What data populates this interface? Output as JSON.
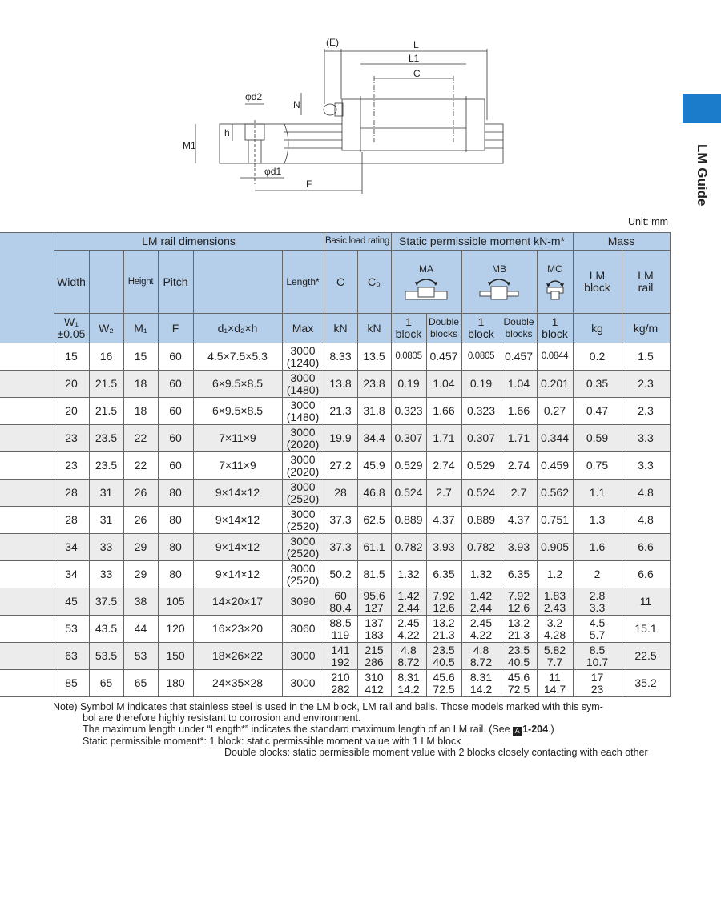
{
  "diagram": {
    "labels": {
      "E": "(E)",
      "L": "L",
      "L1": "L1",
      "C": "C",
      "d2": "φd2",
      "N": "N",
      "M1": "M1",
      "h": "h",
      "d1": "φd1",
      "F": "F"
    }
  },
  "side_tab": {
    "label": "LM Guide",
    "color": "#1b7ccb"
  },
  "unit": "Unit: mm",
  "table": {
    "header": {
      "lm_rail_dimensions": "LM rail dimensions",
      "basic_load_rating": "Basic load rating",
      "static_moment": "Static permissible moment kN-m*",
      "mass": "Mass",
      "width": "Width",
      "height": "Height",
      "pitch": "Pitch",
      "length": "Length*",
      "c": "C",
      "c0": "C₀",
      "ma": "MA",
      "mb": "MB",
      "mc": "MC",
      "lm_block": "LM\nblock",
      "lm_rail": "LM\nrail",
      "w1": "W₁\n±0.05",
      "w2": "W₂",
      "m1": "M₁",
      "f": "F",
      "d": "d₁×d₂×h",
      "max": "Max",
      "kn1": "kN",
      "kn2": "kN",
      "one_block_a": "1\nblock",
      "double_a": "Double\nblocks",
      "one_block_b": "1\nblock",
      "double_b": "Double\nblocks",
      "one_block_c": "1\nblock",
      "kg": "kg",
      "kgm": "kg/m"
    },
    "rows": [
      [
        "15",
        "16",
        "15",
        "60",
        "4.5×7.5×5.3",
        "3000\n(1240)",
        "8.33",
        "13.5",
        "0.0805",
        "0.457",
        "0.0805",
        "0.457",
        "0.0844",
        "0.2",
        "1.5"
      ],
      [
        "20",
        "21.5",
        "18",
        "60",
        "6×9.5×8.5",
        "3000\n(1480)",
        "13.8",
        "23.8",
        "0.19",
        "1.04",
        "0.19",
        "1.04",
        "0.201",
        "0.35",
        "2.3"
      ],
      [
        "20",
        "21.5",
        "18",
        "60",
        "6×9.5×8.5",
        "3000\n(1480)",
        "21.3",
        "31.8",
        "0.323",
        "1.66",
        "0.323",
        "1.66",
        "0.27",
        "0.47",
        "2.3"
      ],
      [
        "23",
        "23.5",
        "22",
        "60",
        "7×11×9",
        "3000\n(2020)",
        "19.9",
        "34.4",
        "0.307",
        "1.71",
        "0.307",
        "1.71",
        "0.344",
        "0.59",
        "3.3"
      ],
      [
        "23",
        "23.5",
        "22",
        "60",
        "7×11×9",
        "3000\n(2020)",
        "27.2",
        "45.9",
        "0.529",
        "2.74",
        "0.529",
        "2.74",
        "0.459",
        "0.75",
        "3.3"
      ],
      [
        "28",
        "31",
        "26",
        "80",
        "9×14×12",
        "3000\n(2520)",
        "28",
        "46.8",
        "0.524",
        "2.7",
        "0.524",
        "2.7",
        "0.562",
        "1.1",
        "4.8"
      ],
      [
        "28",
        "31",
        "26",
        "80",
        "9×14×12",
        "3000\n(2520)",
        "37.3",
        "62.5",
        "0.889",
        "4.37",
        "0.889",
        "4.37",
        "0.751",
        "1.3",
        "4.8"
      ],
      [
        "34",
        "33",
        "29",
        "80",
        "9×14×12",
        "3000\n(2520)",
        "37.3",
        "61.1",
        "0.782",
        "3.93",
        "0.782",
        "3.93",
        "0.905",
        "1.6",
        "6.6"
      ],
      [
        "34",
        "33",
        "29",
        "80",
        "9×14×12",
        "3000\n(2520)",
        "50.2",
        "81.5",
        "1.32",
        "6.35",
        "1.32",
        "6.35",
        "1.2",
        "2",
        "6.6"
      ],
      [
        "45",
        "37.5",
        "38",
        "105",
        "14×20×17",
        "3090",
        "60\n80.4",
        "95.6\n127",
        "1.42\n2.44",
        "7.92\n12.6",
        "1.42\n2.44",
        "7.92\n12.6",
        "1.83\n2.43",
        "2.8\n3.3",
        "11"
      ],
      [
        "53",
        "43.5",
        "44",
        "120",
        "16×23×20",
        "3060",
        "88.5\n119",
        "137\n183",
        "2.45\n4.22",
        "13.2\n21.3",
        "2.45\n4.22",
        "13.2\n21.3",
        "3.2\n4.28",
        "4.5\n5.7",
        "15.1"
      ],
      [
        "63",
        "53.5",
        "53",
        "150",
        "18×26×22",
        "3000",
        "141\n192",
        "215\n286",
        "4.8\n8.72",
        "23.5\n40.5",
        "4.8\n8.72",
        "23.5\n40.5",
        "5.82\n7.7",
        "8.5\n10.7",
        "22.5"
      ],
      [
        "85",
        "65",
        "65",
        "180",
        "24×35×28",
        "3000",
        "210\n282",
        "310\n412",
        "8.31\n14.2",
        "45.6\n72.5",
        "8.31\n14.2",
        "45.6\n72.5",
        "11\n14.7",
        "17\n23",
        "35.2"
      ]
    ],
    "colors": {
      "header_bg": "#b5cfea",
      "alt_row_bg": "#ececec"
    }
  },
  "notes": {
    "line1": "Note) Symbol M indicates that stainless steel is used in the LM block, LM rail and balls. Those models marked with this sym-",
    "line2": "bol are therefore highly resistant to corrosion and environment.",
    "line3_pre": "The maximum length under “Length*” indicates the standard maximum length of an LM rail. (See ",
    "ref_icon": "A",
    "ref": "1-204",
    "line3_post": ".)",
    "line4": "Static permissible moment*: 1 block: static permissible moment value with 1 LM block",
    "line5": "Double blocks: static permissible moment value with 2 blocks closely contacting with each other"
  }
}
